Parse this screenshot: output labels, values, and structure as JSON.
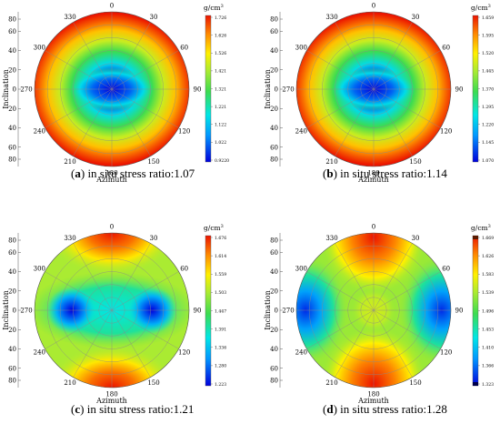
{
  "figure": {
    "panels": [
      {
        "id": "a",
        "caption_letter": "a",
        "caption_text": "in situ stress ratio:1.07",
        "unit": "g/cm",
        "unit_exp": "3",
        "colorbar_ticks": [
          "1.726",
          "1.626",
          "1.526",
          "1.421",
          "1.321",
          "1.221",
          "1.122",
          "1.022",
          "0.9220"
        ],
        "pattern": "ring"
      },
      {
        "id": "b",
        "caption_letter": "b",
        "caption_text": "in situ stress ratio:1.14",
        "unit": "g/cm",
        "unit_exp": "3",
        "colorbar_ticks": [
          "1.659",
          "1.595",
          "1.520",
          "1.445",
          "1.370",
          "1.295",
          "1.220",
          "1.145",
          "1.070"
        ],
        "pattern": "ring"
      },
      {
        "id": "c",
        "caption_letter": "c",
        "caption_text": "in situ stress ratio:1.21",
        "unit": "g/cm",
        "unit_exp": "3",
        "colorbar_ticks": [
          "1.676",
          "1.614",
          "1.559",
          "1.503",
          "1.447",
          "1.391",
          "1.336",
          "1.280",
          "1.223"
        ],
        "pattern": "lobes"
      },
      {
        "id": "d",
        "caption_letter": "d",
        "caption_text": "in situ stress ratio:1.28",
        "unit": "g/cm",
        "unit_exp": "3",
        "colorbar_ticks": [
          "1.669",
          "1.626",
          "1.583",
          "1.539",
          "1.496",
          "1.453",
          "1.410",
          "1.366",
          "1.323"
        ],
        "pattern": "cross"
      }
    ],
    "azimuth_labels": [
      "0",
      "30",
      "60",
      "90",
      "120",
      "150",
      "180",
      "210",
      "240",
      "270",
      "300",
      "330"
    ],
    "inclination_ticks": [
      "80",
      "60",
      "40",
      "20",
      "0",
      "20",
      "40",
      "60",
      "80"
    ],
    "x_axis_title": "Azimuth",
    "y_axis_title": "Inclination"
  }
}
